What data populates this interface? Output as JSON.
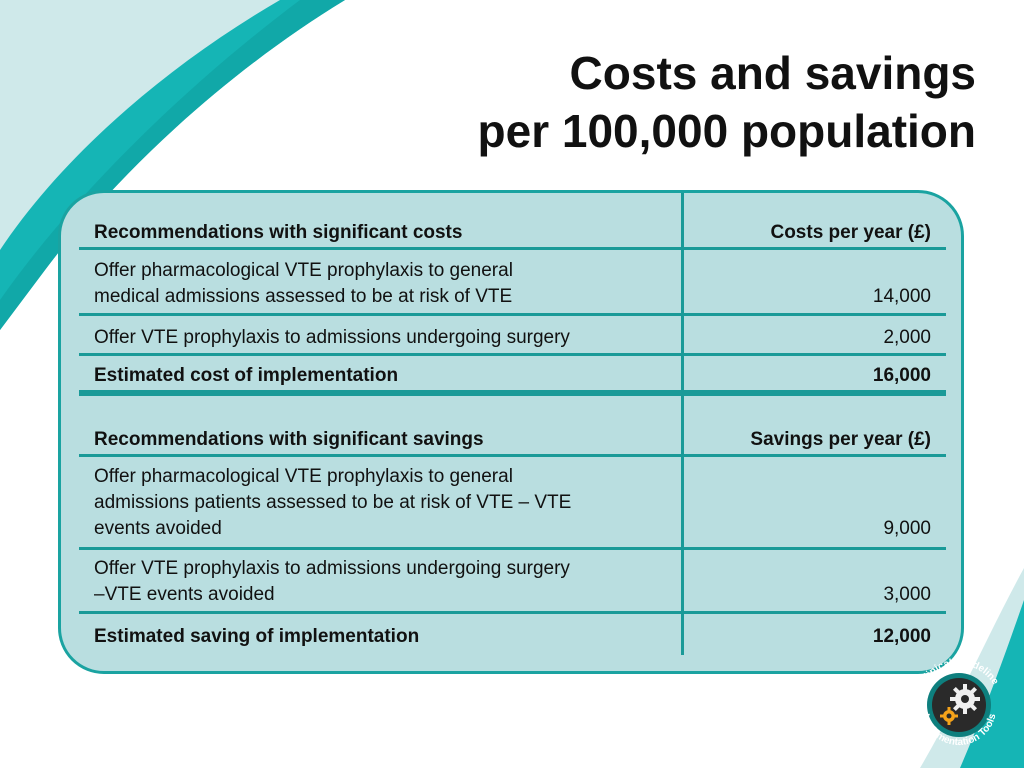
{
  "title": {
    "line1": "Costs and savings",
    "line2": "per 100,000 population"
  },
  "costs": {
    "header_label": "Recommendations with significant costs",
    "header_value": "Costs  per year (£)",
    "rows": [
      {
        "line1": "Offer pharmacological VTE prophylaxis to general",
        "line2": "medical admissions assessed to be at risk of VTE",
        "value": "14,000"
      },
      {
        "line1": "Offer VTE prophylaxis to admissions undergoing surgery",
        "value": "2,000"
      }
    ],
    "total_label": "Estimated cost of implementation",
    "total_value": "16,000"
  },
  "savings": {
    "header_label": "Recommendations with significant savings",
    "header_value": "Savings per year (£)",
    "rows": [
      {
        "line1": "Offer pharmacological VTE prophylaxis to general",
        "line2": "admissions patients assessed to be at risk of VTE – VTE",
        "line3": "events avoided",
        "value": "9,000"
      },
      {
        "line1": "Offer VTE prophylaxis to admissions undergoing surgery",
        "line2": "–VTE events avoided",
        "value": "3,000"
      }
    ],
    "total_label": "Estimated saving of implementation",
    "total_value": "12,000"
  },
  "logo": {
    "line1": "Clinical Guideline",
    "line2": "Implementation Tools"
  },
  "colors": {
    "accent_teal": "#15b5b5",
    "panel_fill": "#b9dee0",
    "divider": "#1a9a98"
  }
}
